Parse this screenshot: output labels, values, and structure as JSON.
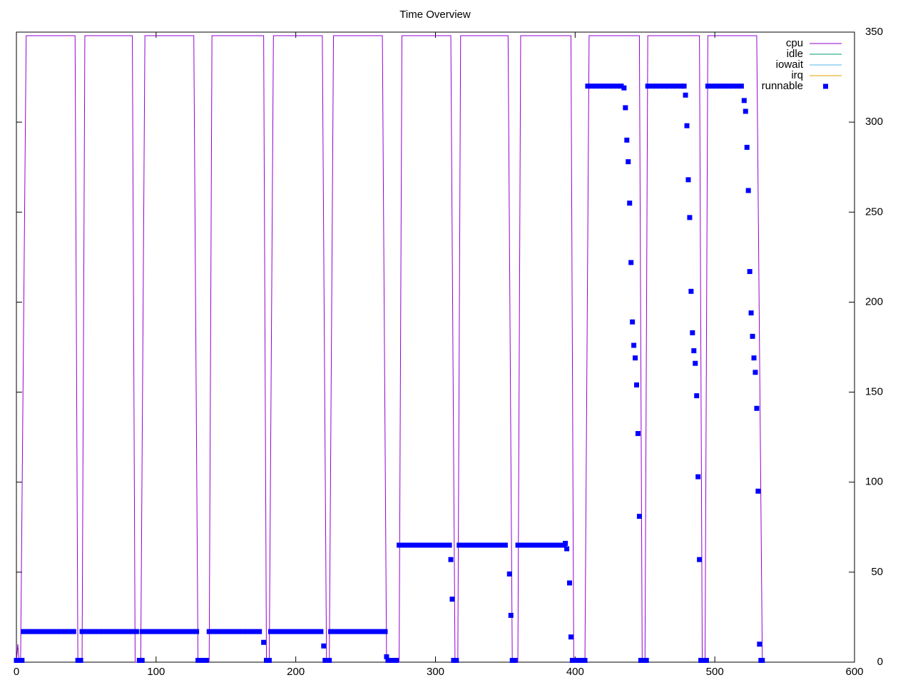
{
  "chart_data": {
    "type": "line",
    "title": "Time Overview",
    "xlim": [
      0,
      600
    ],
    "xticks": [
      0,
      100,
      200,
      300,
      400,
      500,
      600
    ],
    "ylim": [
      0,
      350
    ],
    "yticks": [
      0,
      50,
      100,
      150,
      200,
      250,
      300,
      350
    ],
    "y_axis_side": "right",
    "grid": false,
    "legend": "top-right",
    "series": [
      {
        "name": "cpu",
        "color": "#9400d3",
        "style": "lines",
        "x": [
          0,
          1,
          2,
          3,
          7,
          42,
          44,
          47,
          49,
          83,
          85,
          89,
          92,
          127,
          130,
          138,
          140,
          177,
          179,
          181,
          184,
          219,
          222,
          224,
          227,
          262,
          265,
          274,
          276,
          311,
          314,
          316,
          318,
          352,
          355,
          359,
          361,
          397,
          399,
          407,
          410,
          446,
          448,
          450,
          452,
          489,
          491,
          493,
          495,
          530,
          534,
          535
        ],
        "values": [
          0,
          10,
          0,
          0,
          348,
          348,
          0,
          0,
          348,
          348,
          0,
          0,
          348,
          348,
          0,
          0,
          348,
          348,
          0,
          0,
          348,
          348,
          0,
          0,
          348,
          348,
          0,
          0,
          348,
          348,
          0,
          0,
          348,
          348,
          0,
          0,
          348,
          348,
          0,
          0,
          348,
          348,
          0,
          0,
          348,
          348,
          0,
          0,
          348,
          348,
          0,
          0
        ]
      },
      {
        "name": "idle",
        "color": "#009e73",
        "style": "lines",
        "x": [],
        "values": []
      },
      {
        "name": "iowait",
        "color": "#56b4e9",
        "style": "lines",
        "x": [],
        "values": []
      },
      {
        "name": "irq",
        "color": "#e69f00",
        "style": "lines",
        "x": [],
        "values": []
      },
      {
        "name": "runnable",
        "color": "#0000ff",
        "style": "points",
        "x": [
          0,
          2,
          4,
          5,
          8,
          11,
          14,
          17,
          20,
          23,
          26,
          29,
          32,
          35,
          38,
          41,
          44,
          46,
          47,
          50,
          53,
          56,
          59,
          62,
          65,
          68,
          71,
          74,
          77,
          80,
          83,
          86,
          88,
          90,
          90,
          93,
          96,
          99,
          102,
          105,
          108,
          111,
          114,
          117,
          120,
          123,
          126,
          129,
          130,
          133,
          136,
          138,
          141,
          144,
          147,
          150,
          153,
          156,
          159,
          162,
          165,
          168,
          171,
          174,
          177,
          179,
          181,
          182,
          185,
          188,
          191,
          194,
          197,
          200,
          203,
          206,
          209,
          212,
          215,
          218,
          220,
          221,
          224,
          225,
          228,
          231,
          234,
          237,
          240,
          243,
          246,
          249,
          252,
          255,
          258,
          261,
          264,
          265,
          266,
          269,
          272,
          274,
          277,
          280,
          283,
          286,
          289,
          292,
          295,
          298,
          301,
          304,
          307,
          310,
          311,
          312,
          313,
          315,
          317,
          320,
          323,
          326,
          329,
          332,
          335,
          338,
          341,
          344,
          347,
          350,
          353,
          354,
          355,
          357,
          359,
          362,
          365,
          368,
          371,
          374,
          377,
          380,
          383,
          386,
          389,
          392,
          393,
          394,
          396,
          397,
          398,
          401,
          404,
          407,
          409,
          412,
          415,
          418,
          421,
          424,
          427,
          430,
          433,
          435,
          436,
          437,
          438,
          439,
          440,
          441,
          442,
          443,
          444,
          445,
          446,
          447,
          449,
          451,
          452,
          455,
          458,
          461,
          464,
          467,
          470,
          473,
          476,
          478,
          479,
          480,
          481,
          482,
          483,
          484,
          485,
          486,
          487,
          488,
          489,
          490,
          492,
          494,
          495,
          498,
          501,
          504,
          507,
          510,
          513,
          516,
          519,
          521,
          522,
          523,
          524,
          525,
          526,
          527,
          528,
          529,
          530,
          531,
          532,
          533,
          534
        ],
        "values": [
          1,
          1,
          1,
          17,
          17,
          17,
          17,
          17,
          17,
          17,
          17,
          17,
          17,
          17,
          17,
          17,
          1,
          1,
          17,
          17,
          17,
          17,
          17,
          17,
          17,
          17,
          17,
          17,
          17,
          17,
          17,
          17,
          1,
          1,
          17,
          17,
          17,
          17,
          17,
          17,
          17,
          17,
          17,
          17,
          17,
          17,
          17,
          17,
          1,
          1,
          1,
          17,
          17,
          17,
          17,
          17,
          17,
          17,
          17,
          17,
          17,
          17,
          17,
          17,
          11,
          1,
          1,
          17,
          17,
          17,
          17,
          17,
          17,
          17,
          17,
          17,
          17,
          17,
          17,
          17,
          9,
          1,
          1,
          17,
          17,
          17,
          17,
          17,
          17,
          17,
          17,
          17,
          17,
          17,
          17,
          17,
          17,
          3,
          1,
          1,
          1,
          65,
          65,
          65,
          65,
          65,
          65,
          65,
          65,
          65,
          65,
          65,
          65,
          65,
          57,
          35,
          1,
          1,
          65,
          65,
          65,
          65,
          65,
          65,
          65,
          65,
          65,
          65,
          65,
          65,
          49,
          26,
          1,
          1,
          65,
          65,
          65,
          65,
          65,
          65,
          65,
          65,
          65,
          65,
          65,
          65,
          66,
          63,
          44,
          14,
          1,
          1,
          1,
          1,
          320,
          320,
          320,
          320,
          320,
          320,
          320,
          320,
          320,
          319,
          308,
          290,
          278,
          255,
          222,
          189,
          176,
          169,
          154,
          127,
          81,
          1,
          1,
          1,
          320,
          320,
          320,
          320,
          320,
          320,
          320,
          320,
          320,
          320,
          315,
          298,
          268,
          247,
          206,
          183,
          173,
          166,
          148,
          103,
          57,
          1,
          1,
          1,
          320,
          320,
          320,
          320,
          320,
          320,
          320,
          320,
          320,
          312,
          306,
          286,
          262,
          217,
          194,
          181,
          169,
          161,
          141,
          95,
          10,
          1,
          1
        ]
      }
    ]
  }
}
